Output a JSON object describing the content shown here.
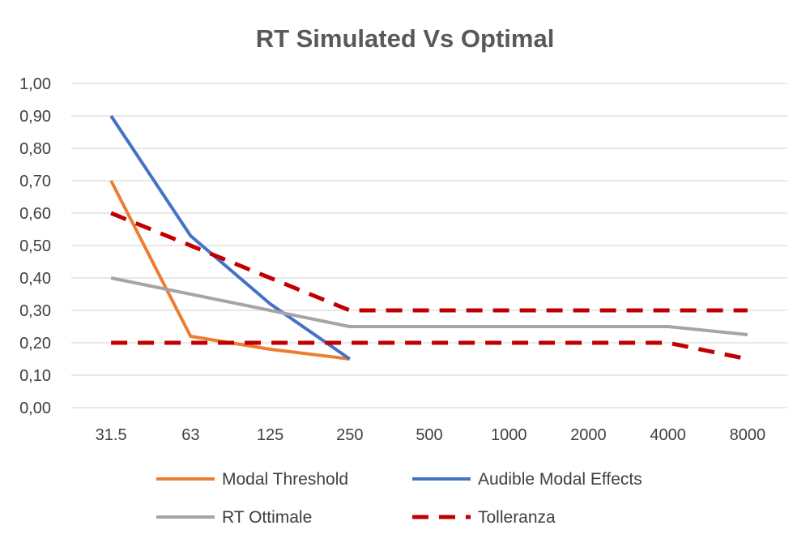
{
  "chart_data": {
    "type": "line",
    "title": "RT Simulated Vs Optimal",
    "xlabel": "",
    "ylabel": "",
    "categories": [
      "31.5",
      "63",
      "125",
      "250",
      "500",
      "1000",
      "2000",
      "4000",
      "8000"
    ],
    "yticks": [
      "0,00",
      "0,10",
      "0,20",
      "0,30",
      "0,40",
      "0,50",
      "0,60",
      "0,70",
      "0,80",
      "0,90",
      "1,00"
    ],
    "ylim": [
      0,
      1.0
    ],
    "grid": true,
    "legend_position": "bottom",
    "series": [
      {
        "name": "Modal Threshold",
        "color": "#ed7d31",
        "dash": false,
        "values": [
          0.7,
          0.22,
          0.18,
          0.15,
          null,
          null,
          null,
          null,
          null
        ]
      },
      {
        "name": "Audible Modal Effects",
        "color": "#4472c4",
        "dash": false,
        "values": [
          0.9,
          0.53,
          0.32,
          0.15,
          null,
          null,
          null,
          null,
          null
        ]
      },
      {
        "name": "RT Ottimale",
        "color": "#a5a5a5",
        "dash": false,
        "values": [
          0.4,
          0.35,
          0.3,
          0.25,
          0.25,
          0.25,
          0.25,
          0.25,
          0.225
        ]
      },
      {
        "name": "Tolleranza",
        "color": "#c00000",
        "dash": true,
        "values": [
          0.6,
          0.5,
          0.4,
          0.3,
          0.3,
          0.3,
          0.3,
          0.3,
          0.3
        ]
      },
      {
        "name": "",
        "color": "#c00000",
        "dash": true,
        "values": [
          0.2,
          0.2,
          0.2,
          0.2,
          0.2,
          0.2,
          0.2,
          0.2,
          0.15
        ]
      }
    ]
  }
}
